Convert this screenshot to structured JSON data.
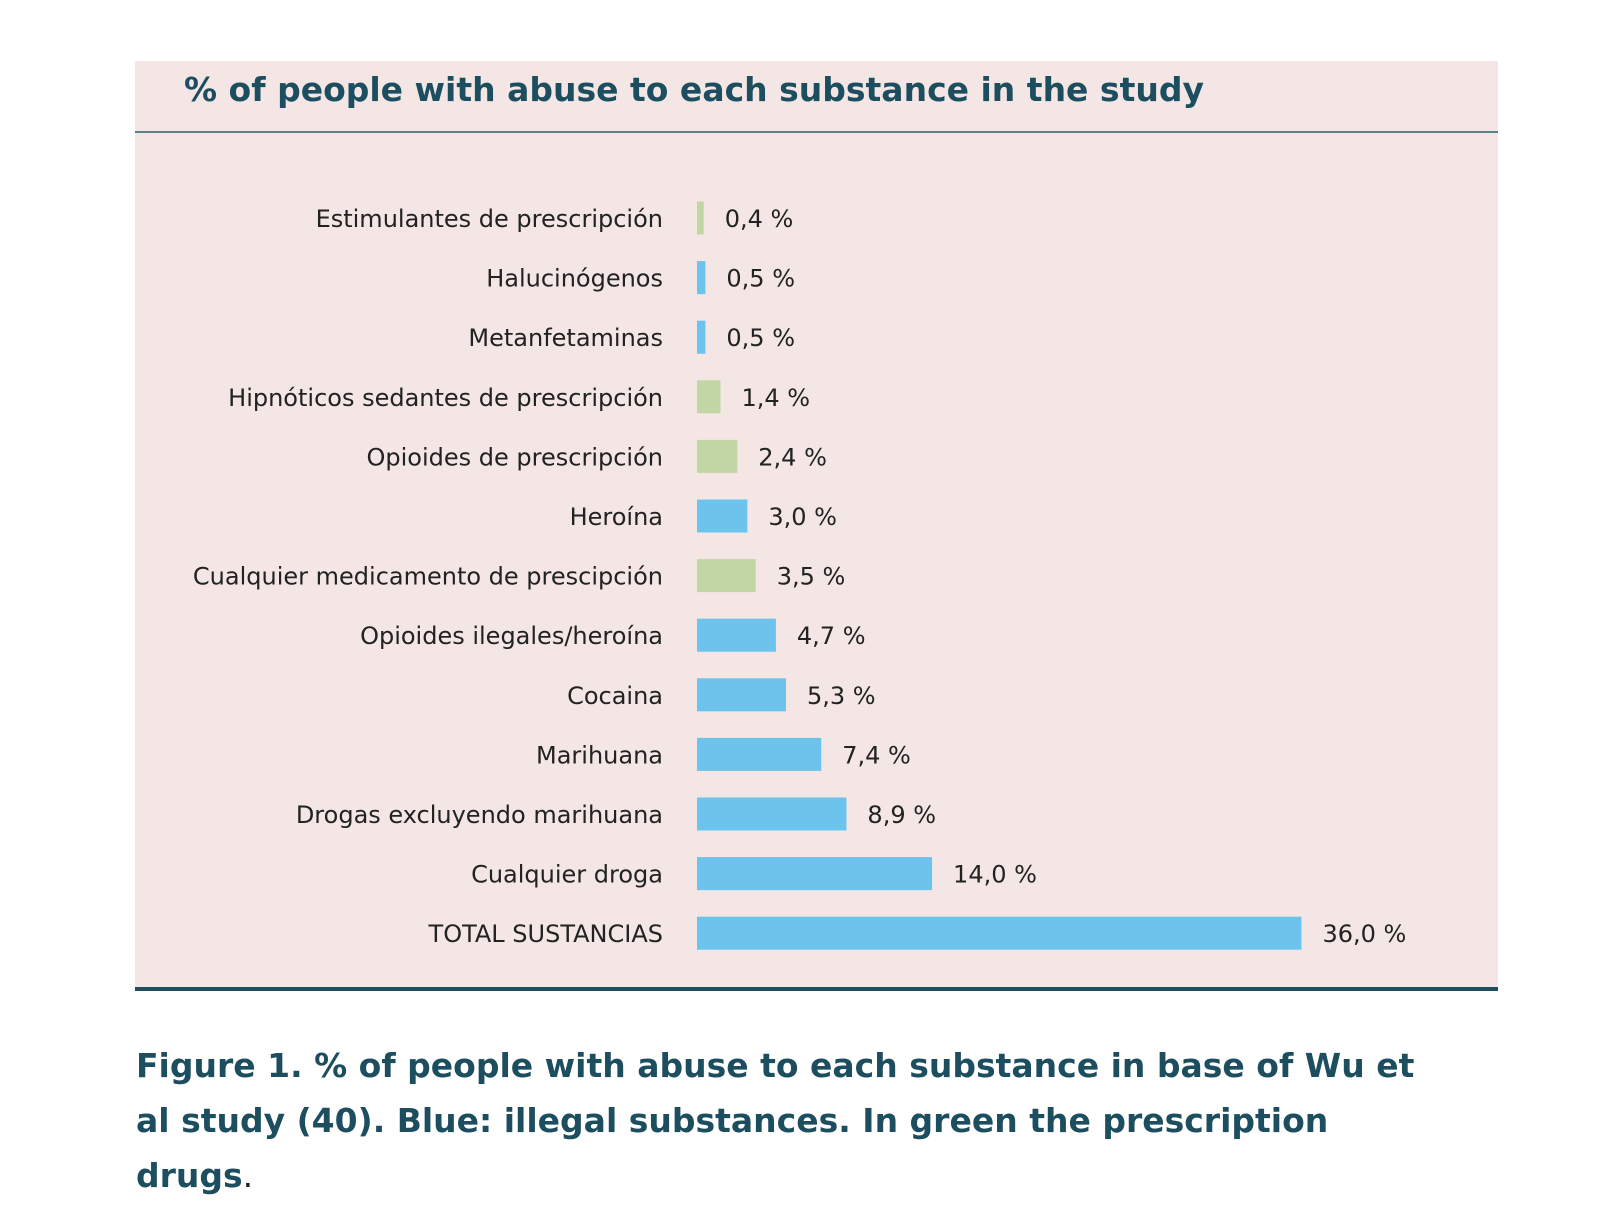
{
  "chart_data": {
    "type": "bar",
    "orientation": "horizontal",
    "title": "% of people with abuse to each substance in the study",
    "categories": [
      "Estimulantes de prescripción",
      "Halucinógenos",
      "Metanfetaminas",
      "Hipnóticos sedantes  de prescripción",
      "Opioides de prescripción",
      "Heroína",
      "Cualquier medicamento de prescipción",
      "Opioides ilegales/heroína",
      "Cocaina",
      "Marihuana",
      "Drogas excluyendo marihuana",
      "Cualquier droga",
      "TOTAL SUSTANCIAS"
    ],
    "values": [
      0.4,
      0.5,
      0.5,
      1.4,
      2.4,
      3.0,
      3.5,
      4.7,
      5.3,
      7.4,
      8.9,
      14.0,
      36.0
    ],
    "value_labels": [
      "0,4 %",
      "0,5 %",
      "0,5 %",
      "1,4 %",
      "2,4 %",
      "3,0 %",
      "3,5 %",
      "4,7 %",
      "5,3 %",
      "7,4 %",
      "8,9 %",
      "14,0 %",
      "36,0 %"
    ],
    "groups": [
      "prescription",
      "illegal",
      "illegal",
      "prescription",
      "prescription",
      "illegal",
      "prescription",
      "illegal",
      "illegal",
      "illegal",
      "illegal",
      "illegal",
      "illegal"
    ],
    "group_colors": {
      "illegal": "#6cc3ec",
      "prescription": "#c2d6a5"
    },
    "xlim": [
      0,
      36
    ],
    "grid": false,
    "legend": "none"
  },
  "caption": {
    "text": "Figure 1. % of people with abuse to each substance in base of Wu et al study (40). Blue: illegal substances. In green the prescription drugs",
    "end": "."
  },
  "colors": {
    "panel_background": "#f3e6e4",
    "title_text": "#1d4e60",
    "label_text": "#222222"
  }
}
